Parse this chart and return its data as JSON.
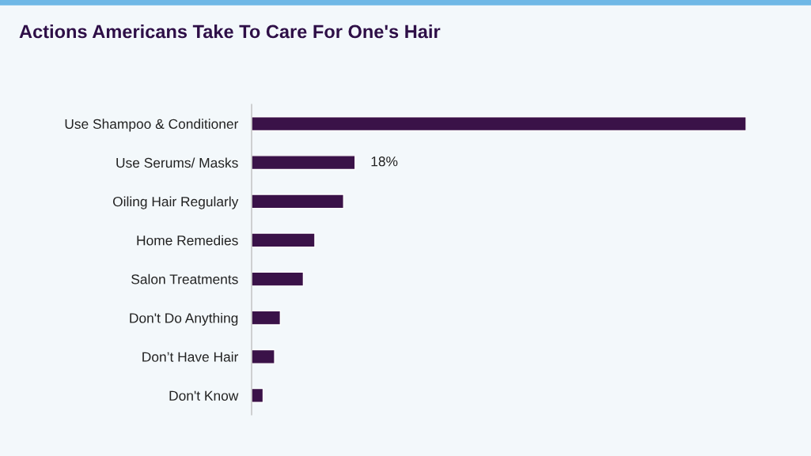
{
  "chart_data": {
    "type": "bar",
    "orientation": "horizontal",
    "title": "Actions Americans Take To Care For One's Hair",
    "categories": [
      "Use Shampoo & Conditioner",
      "Use Serums/ Masks",
      "Oiling Hair Regularly",
      "Home Remedies",
      "Salon Treatments",
      "Don't Do Anything",
      "Don’t Have Hair",
      "Don't Know"
    ],
    "values": [
      86,
      18,
      16,
      11,
      9,
      5,
      4,
      2
    ],
    "value_labels": [
      null,
      "18%",
      null,
      null,
      null,
      null,
      null,
      null
    ],
    "color": "#3a1248",
    "grid": false,
    "legend": false
  }
}
